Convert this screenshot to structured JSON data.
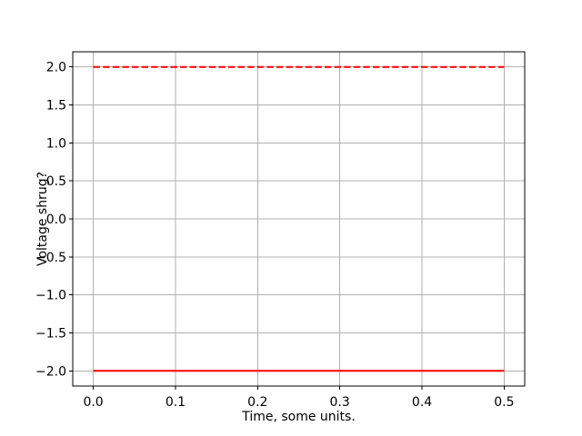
{
  "figure": {
    "background": "#ffffff"
  },
  "chart_data": {
    "type": "line",
    "xlabel": "Time, some units.",
    "ylabel": "Voltage shrug?",
    "xlim": [
      -0.025,
      0.525
    ],
    "ylim": [
      -2.2,
      2.2
    ],
    "grid": true,
    "legend": false,
    "x_ticks": [
      0.0,
      0.1,
      0.2,
      0.3,
      0.4,
      0.5
    ],
    "x_tick_labels": [
      "0.0",
      "0.1",
      "0.2",
      "0.3",
      "0.4",
      "0.5"
    ],
    "y_ticks": [
      2.0,
      1.5,
      1.0,
      0.5,
      0.0,
      -0.5,
      -1.0,
      -1.5,
      -2.0
    ],
    "y_tick_labels": [
      "2.0",
      "1.5",
      "1.0",
      "0.5",
      "0.0",
      "−0.5",
      "−1.0",
      "−1.5",
      "−2.0"
    ],
    "series": [
      {
        "name": "upper-dashed-line",
        "style": "dashed",
        "color": "#ff0000",
        "linewidth": 2,
        "x": [
          0.0,
          0.5
        ],
        "y": [
          2.0,
          2.0
        ]
      },
      {
        "name": "lower-solid-line",
        "style": "solid",
        "color": "#ff0000",
        "linewidth": 2,
        "x": [
          0.0,
          0.5
        ],
        "y": [
          -2.0,
          -2.0
        ]
      }
    ],
    "colors": {
      "grid": "#b0b0b0",
      "spine": "#000000",
      "tick": "#000000",
      "text": "#000000",
      "background": "#ffffff"
    }
  }
}
